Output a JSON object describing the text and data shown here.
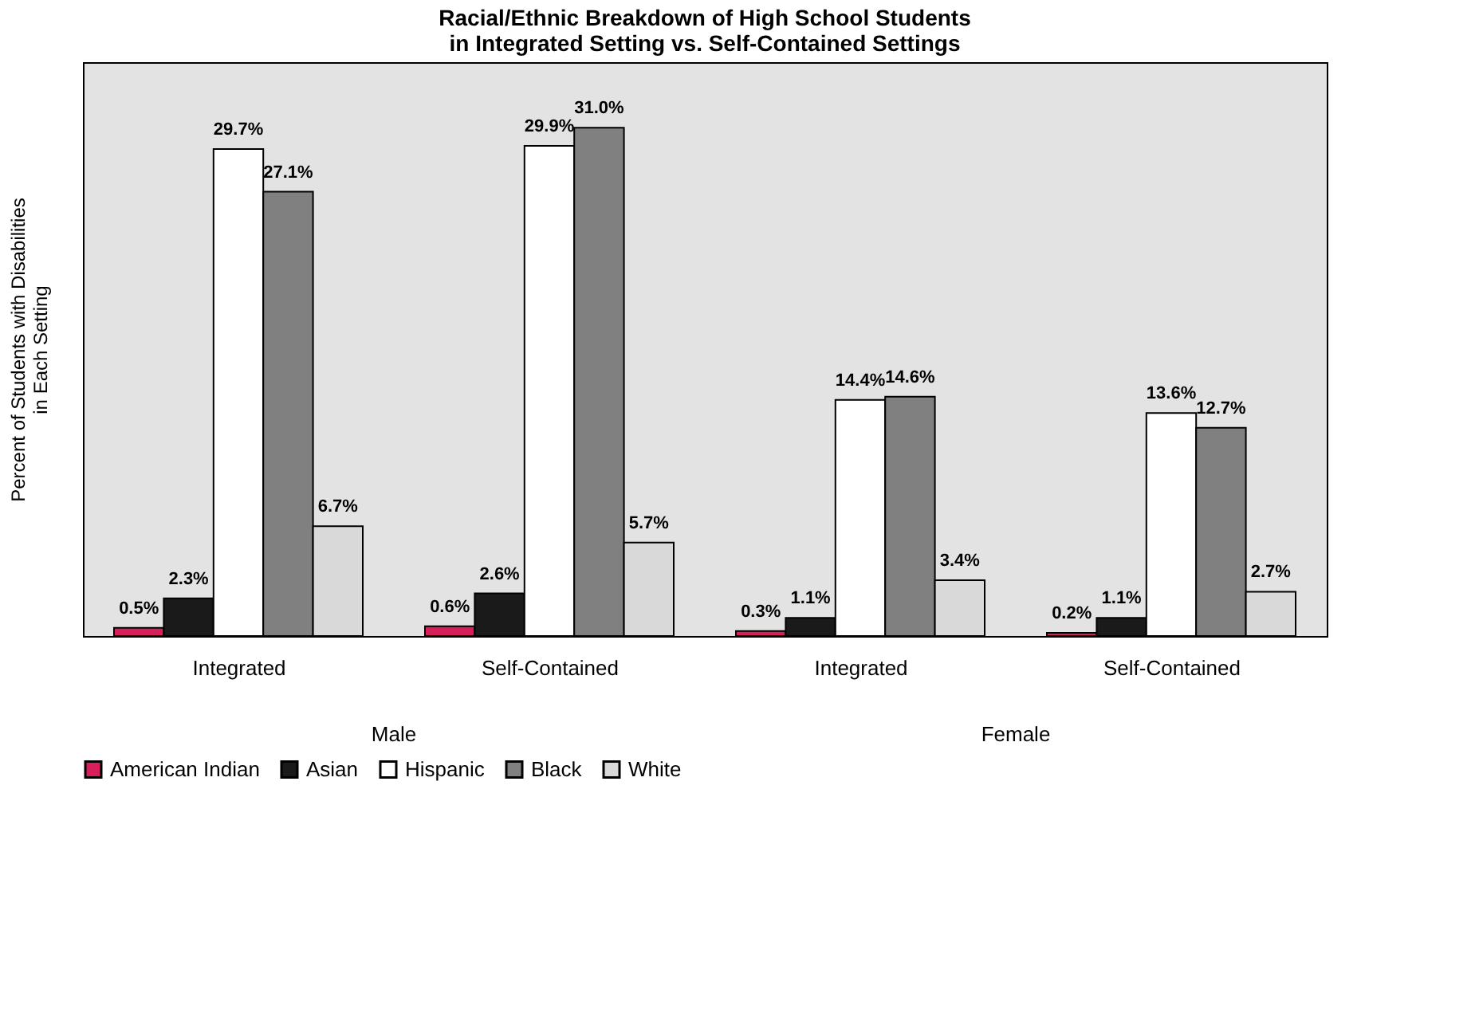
{
  "chart_data": {
    "type": "bar",
    "title": [
      "Racial/Ethnic Breakdown of High School Students",
      "in Integrated Setting vs. Self-Contained Settings"
    ],
    "ylabel": [
      "Percent of Students with Disabilities",
      "in Each Setting"
    ],
    "categories": [
      "Integrated",
      "Self-Contained",
      "Integrated",
      "Self-Contained"
    ],
    "annotations": [
      "Male",
      "Female"
    ],
    "tick_labels": "x",
    "legend": "bottom",
    "grid": false,
    "series": [
      {
        "name": "American Indian",
        "color": "#d6205a",
        "values": [
          0.5,
          0.6,
          0.3,
          0.2
        ],
        "value_labels": [
          "0.5%",
          "0.6%",
          "0.3%",
          "0.2%"
        ]
      },
      {
        "name": "Asian",
        "color": "#1a1a1a",
        "values": [
          2.3,
          2.6,
          1.1,
          1.1
        ],
        "value_labels": [
          "2.3%",
          "2.6%",
          "1.1%",
          "1.1%"
        ]
      },
      {
        "name": "Hispanic",
        "color": "#ffffff",
        "values": [
          29.7,
          29.9,
          14.4,
          13.6
        ],
        "value_labels": [
          "29.7%",
          "29.9%",
          "14.4%",
          "13.6%"
        ]
      },
      {
        "name": "Black",
        "color": "#808080",
        "values": [
          27.1,
          31.0,
          14.6,
          12.7
        ],
        "value_labels": [
          "27.1%",
          "31.0%",
          "14.6%",
          "12.7%"
        ]
      },
      {
        "name": "White",
        "color": "#d9d9d9",
        "values": [
          6.7,
          5.7,
          3.4,
          2.7
        ],
        "value_labels": [
          "6.7%",
          "5.7%",
          "3.4%",
          "2.7%"
        ]
      }
    ]
  }
}
